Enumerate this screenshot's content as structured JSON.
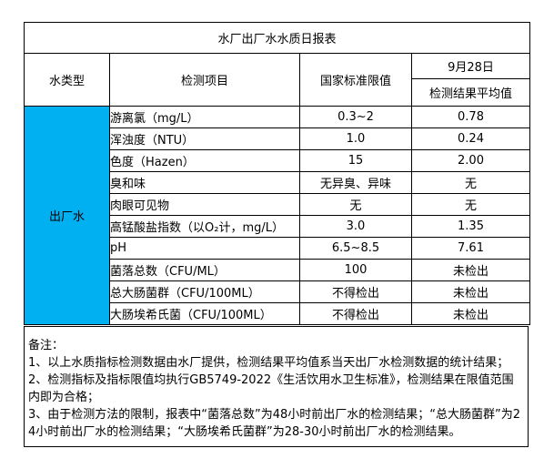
{
  "report": {
    "title": "水厂出厂水水质日报表",
    "headers": {
      "water_type": "水类型",
      "item": "检测项目",
      "limit": "国家标准限值",
      "date": "9月28日",
      "result_avg": "检测结果平均值"
    },
    "water_type_value": "出厂水",
    "colors": {
      "water_type_bg": "#00b0f0",
      "border": "#000000"
    },
    "rows": [
      {
        "item": "游离氯（mg/L）",
        "limit": "0.3~2",
        "result": "0.78"
      },
      {
        "item": "浑浊度（NTU）",
        "limit": "1.0",
        "result": "0.24"
      },
      {
        "item": "色度（Hazen）",
        "limit": "15",
        "result": "2.00"
      },
      {
        "item": "臭和味",
        "limit": "无异臭、异味",
        "result": "无"
      },
      {
        "item": "肉眼可见物",
        "limit": "无",
        "result": "无"
      },
      {
        "item": "高锰酸盐指数（以O₂计，mg/L）",
        "limit": "3.0",
        "result": "1.35"
      },
      {
        "item": "pH",
        "limit": "6.5~8.5",
        "result": "7.61"
      },
      {
        "item": "菌落总数（CFU/ML）",
        "limit": "100",
        "result": "未检出"
      },
      {
        "item": "总大肠菌群（CFU/100ML）",
        "limit": "不得检出",
        "result": "未检出"
      },
      {
        "item": "大肠埃希氏菌（CFU/100ML）",
        "limit": "不得检出",
        "result": "未检出"
      }
    ]
  },
  "notes": {
    "lines": [
      "备注：",
      "1、以上水质指标检测数据由水厂提供，检测结果平均值系当天出厂水检测数据的统计结果；",
      "2、检测指标及指标限值均执行GB5749-2022《生活饮用水卫生标准》，检测结果在限值范围内即为合格；",
      "3、由于检测方法的限制，报表中“菌落总数”为48小时前出厂水的检测结果；“总大肠菌群”为24小时前出厂水的检测结果；“大肠埃希氏菌群”为28-30小时前出厂水的检测结果。"
    ]
  }
}
